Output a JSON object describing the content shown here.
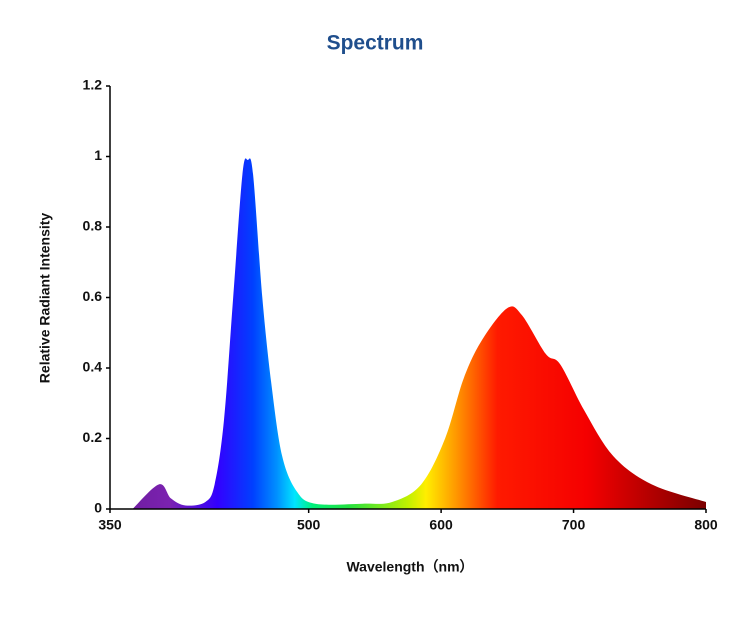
{
  "chart_data": {
    "type": "area",
    "title": "Spectrum",
    "x_label": "Wavelength（nm）",
    "y_label": "Relative Radiant Intensity",
    "series": [
      {
        "name": "Spectrum",
        "x": [
          367,
          387,
          396,
          407,
          422,
          429,
          436,
          443,
          450,
          454,
          458,
          465,
          472,
          480,
          491,
          505,
          541,
          563,
          585,
          603,
          617,
          631,
          650,
          661,
          679,
          690,
          708,
          730,
          759,
          800
        ],
        "values": [
          0,
          0.07,
          0.03,
          0.01,
          0.02,
          0.07,
          0.25,
          0.6,
          0.95,
          0.99,
          0.95,
          0.6,
          0.35,
          0.15,
          0.05,
          0.015,
          0.015,
          0.02,
          0.07,
          0.2,
          0.37,
          0.48,
          0.57,
          0.55,
          0.44,
          0.41,
          0.28,
          0.15,
          0.07,
          0.02
        ]
      }
    ],
    "xlim": [
      350,
      800
    ],
    "xticks": [
      350,
      500,
      600,
      700,
      800
    ],
    "ylim": [
      0,
      1.2
    ],
    "yticks": [
      0,
      0.2,
      0.4,
      0.6,
      0.8,
      1,
      1.2
    ]
  }
}
